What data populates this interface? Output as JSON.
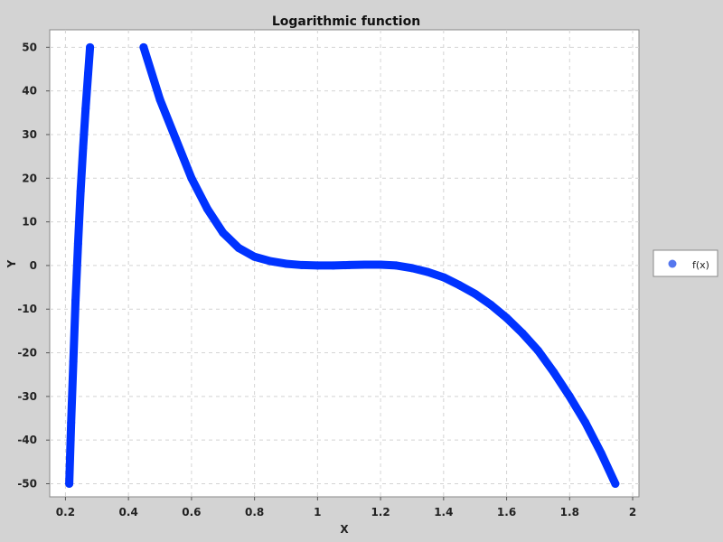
{
  "chart_data": {
    "type": "scatter",
    "title": "Logarithmic function",
    "xlabel": "X",
    "ylabel": "Y",
    "xlim": [
      0.15,
      2.02
    ],
    "ylim": [
      -53,
      54
    ],
    "x_ticks": [
      0.2,
      0.4,
      0.6,
      0.8,
      1,
      1.2,
      1.4,
      1.6,
      1.8,
      2
    ],
    "x_tick_labels": [
      "0.2",
      "0.4",
      "0.6",
      "0.8",
      "1",
      "1.2",
      "1.4",
      "1.6",
      "1.8",
      "2"
    ],
    "y_ticks": [
      -50,
      -40,
      -30,
      -20,
      -10,
      0,
      10,
      20,
      30,
      40,
      50
    ],
    "y_tick_labels": [
      "-50",
      "-40",
      "-30",
      "-20",
      "-10",
      "0",
      "10",
      "20",
      "30",
      "40",
      "50"
    ],
    "grid": true,
    "legend_position": "right",
    "series": [
      {
        "name": "f(x)",
        "color": "#0033ff",
        "legend_color": "#5577ee",
        "segments": [
          {
            "x": [
              0.212,
              0.218,
              0.225,
              0.232,
              0.24,
              0.248,
              0.256,
              0.264,
              0.272,
              0.278
            ],
            "y": [
              -50,
              -36,
              -22,
              -8,
              5,
              17,
              27,
              36,
              44,
              50
            ]
          },
          {
            "x": [
              0.448,
              0.5,
              0.55,
              0.6,
              0.65,
              0.7,
              0.75,
              0.8,
              0.85,
              0.9,
              0.95,
              1.0,
              1.05,
              1.1,
              1.15,
              1.2,
              1.25,
              1.3,
              1.35,
              1.4,
              1.45,
              1.5,
              1.55,
              1.6,
              1.65,
              1.7,
              1.75,
              1.8,
              1.85,
              1.9,
              1.945
            ],
            "y": [
              50,
              38,
              29,
              20,
              13,
              7.5,
              4,
              2,
              1,
              0.4,
              0.1,
              0,
              0,
              0.1,
              0.2,
              0.2,
              0,
              -0.6,
              -1.5,
              -2.7,
              -4.5,
              -6.5,
              -9,
              -12,
              -15.5,
              -19.5,
              -24.5,
              -30,
              -36,
              -43,
              -50
            ]
          }
        ]
      }
    ]
  }
}
